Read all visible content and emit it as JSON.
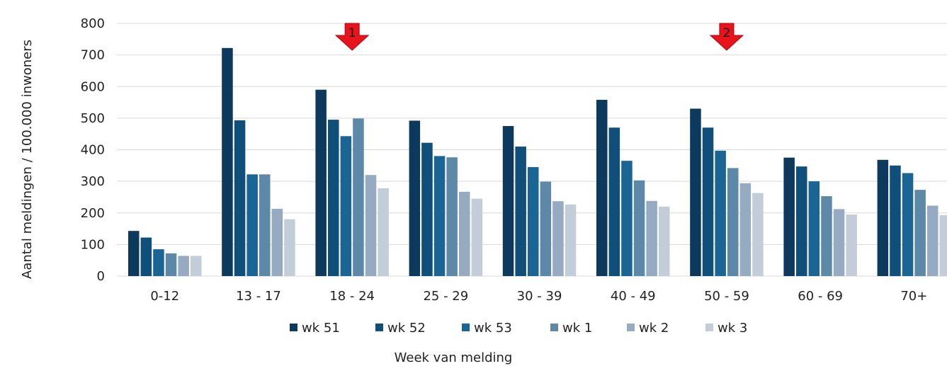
{
  "chart_data": {
    "type": "bar",
    "xlabel": "Week van melding",
    "ylabel": "Aantal meldingen / 100.000 inwoners",
    "ylim": [
      0,
      800
    ],
    "yticks": [
      0,
      100,
      200,
      300,
      400,
      500,
      600,
      700,
      800
    ],
    "grid": true,
    "legend_position": "bottom",
    "categories": [
      "0-12",
      "13 - 17",
      "18 - 24",
      "25 - 29",
      "30 - 39",
      "40 - 49",
      "50 - 59",
      "60 - 69",
      "70+"
    ],
    "series": [
      {
        "name": "wk 51",
        "color": "#0d3a5c",
        "values": [
          143,
          722,
          590,
          492,
          475,
          558,
          530,
          375,
          368
        ]
      },
      {
        "name": "wk 52",
        "color": "#0f4f7a",
        "values": [
          122,
          493,
          495,
          422,
          410,
          470,
          470,
          347,
          350
        ]
      },
      {
        "name": "wk 53",
        "color": "#1a6593",
        "values": [
          85,
          322,
          443,
          380,
          345,
          365,
          397,
          300,
          326
        ]
      },
      {
        "name": "wk 1",
        "color": "#5e88a8",
        "values": [
          72,
          322,
          499,
          376,
          299,
          303,
          342,
          253,
          273
        ]
      },
      {
        "name": "wk 2",
        "color": "#96abc2",
        "values": [
          64,
          213,
          320,
          267,
          237,
          238,
          294,
          212,
          223
        ]
      },
      {
        "name": "wk 3",
        "color": "#c3cdd9",
        "values": [
          64,
          180,
          278,
          245,
          227,
          220,
          263,
          195,
          193
        ]
      }
    ],
    "annotations": [
      {
        "label": "1",
        "color": "#e8141c",
        "category": "18 - 24"
      },
      {
        "label": "2",
        "color": "#e8141c",
        "category": "50 - 59"
      }
    ]
  }
}
